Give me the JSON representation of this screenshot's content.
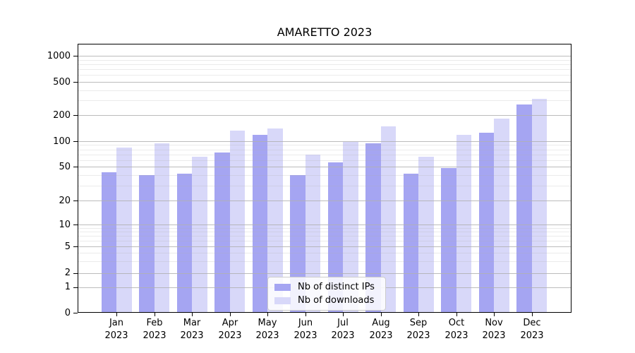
{
  "chart_data": {
    "type": "bar",
    "title": "AMARETTO 2023",
    "categories": [
      "Jan",
      "Feb",
      "Mar",
      "Apr",
      "May",
      "Jun",
      "Jul",
      "Aug",
      "Sep",
      "Oct",
      "Nov",
      "Dec"
    ],
    "year_label": "2023",
    "series": [
      {
        "name": "Nb of distinct IPs",
        "color": "#a5a5f2",
        "values": [
          43,
          40,
          41,
          73,
          119,
          40,
          56,
          94,
          41,
          48,
          125,
          268
        ]
      },
      {
        "name": "Nb of downloads",
        "color": "#d8d8f9",
        "values": [
          84,
          94,
          65,
          132,
          140,
          70,
          98,
          148,
          65,
          119,
          184,
          315
        ]
      }
    ],
    "yscale": "symlog",
    "yticks": [
      0,
      1,
      2,
      5,
      10,
      20,
      50,
      100,
      200,
      500,
      1000
    ],
    "grid": "both",
    "legend_position": "lower-center-inside"
  },
  "colors": {
    "major_grid": "#b0b0b0",
    "minor_grid": "#b0b0b0",
    "spine": "#000000",
    "background": "#ffffff"
  }
}
